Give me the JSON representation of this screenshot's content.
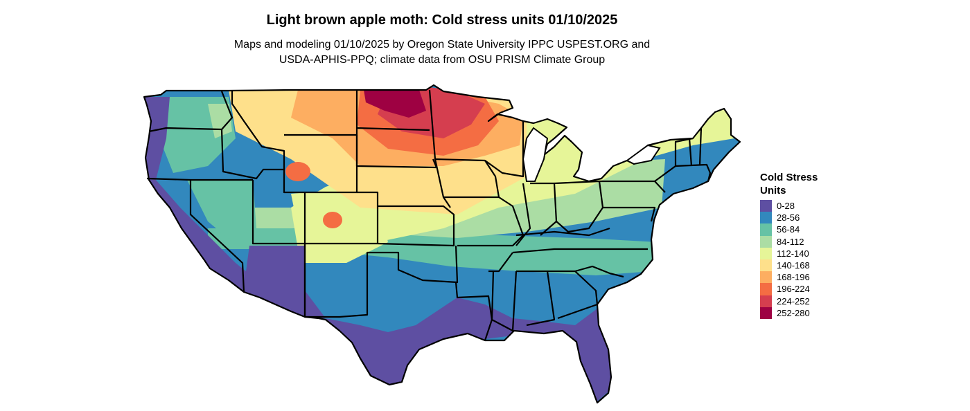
{
  "title": "Light brown apple moth: Cold stress units 01/10/2025",
  "subtitle_lines": [
    "Maps and modeling 01/10/2025 by Oregon State University IPPC USPEST.ORG and",
    "USDA-APHIS-PPQ; climate data from OSU PRISM Climate Group"
  ],
  "legend": {
    "title": "Cold Stress Units",
    "items": [
      {
        "label": "0-28",
        "color": "#5E4FA2"
      },
      {
        "label": "28-56",
        "color": "#3288BD"
      },
      {
        "label": "56-84",
        "color": "#66C2A5"
      },
      {
        "label": "84-112",
        "color": "#ABDDA4"
      },
      {
        "label": "112-140",
        "color": "#E6F598"
      },
      {
        "label": "140-168",
        "color": "#FEE08B"
      },
      {
        "label": "168-196",
        "color": "#FDAE61"
      },
      {
        "label": "196-224",
        "color": "#F46D43"
      },
      {
        "label": "224-252",
        "color": "#D53E4F"
      },
      {
        "label": "252-280",
        "color": "#9E0142"
      }
    ]
  }
}
